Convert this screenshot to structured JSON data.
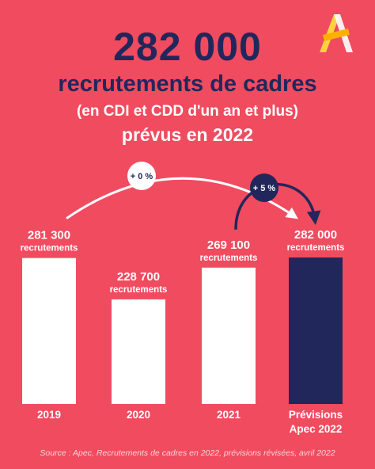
{
  "headline": {
    "number": "282 000",
    "title": "recrutements de cadres",
    "subtitle": "(en CDI et CDD d'un an et plus)",
    "year_line": "prévus en 2022"
  },
  "colors": {
    "background": "#f04b5f",
    "navy": "#22275b",
    "bar_white": "#ffffff",
    "logo_yellow": "#ffd23f"
  },
  "chart_data": {
    "type": "bar",
    "categories": [
      "2019",
      "2020",
      "2021",
      "Prévisions Apec 2022"
    ],
    "category_lines": [
      [
        "2019"
      ],
      [
        "2020"
      ],
      [
        "2021"
      ],
      [
        "Prévisions",
        "Apec 2022"
      ]
    ],
    "values": [
      281300,
      228700,
      269100,
      282000
    ],
    "value_labels": [
      "281 300",
      "228 700",
      "269 100",
      "282 000"
    ],
    "unit_label": "recrutements",
    "highlight_index": 3,
    "annotations": [
      {
        "text": "+ 0 %",
        "from": "2019",
        "to": "Prévisions Apec 2022"
      },
      {
        "text": "+ 5 %",
        "from": "2021",
        "to": "Prévisions Apec 2022"
      }
    ],
    "title": "",
    "xlabel": "",
    "ylabel": ""
  },
  "source": "Source : Apec, Recrutements de cadres en 2022, prévisions révisées, avril 2022",
  "logo": {
    "icon": "apec-logo-icon"
  }
}
